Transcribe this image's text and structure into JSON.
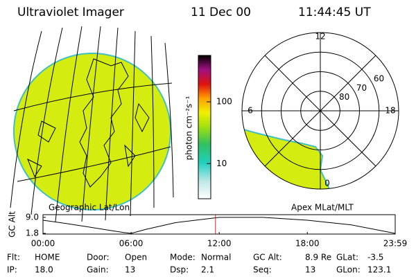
{
  "header": {
    "title": "Ultraviolet Imager",
    "date": "11 Dec 00",
    "time": "11:44:45 UT"
  },
  "geo_panel": {
    "label": "Geographic Lat/Lon"
  },
  "colorbar": {
    "label": "photon cm⁻²s⁻¹",
    "log_scale": true,
    "lim": [
      2.7,
      565
    ],
    "ticks": [
      10,
      100
    ]
  },
  "polar_panel": {
    "label": "Apex MLat/MLT",
    "rlim": [
      90,
      50
    ],
    "rticks": [
      80,
      70,
      60
    ],
    "thetaticks": [
      0,
      6,
      12,
      18
    ]
  },
  "chart_data": {
    "type": "line",
    "ylabel": "GC Alt",
    "x": [
      0,
      1.5,
      3,
      4.5,
      5.5,
      6,
      7,
      9,
      12,
      15,
      18,
      21,
      23.983
    ],
    "series": [
      {
        "name": "GC Alt",
        "color": "#000000",
        "values": [
          7.7,
          6.3,
          4.8,
          3.2,
          2.2,
          1.8,
          3.6,
          6.6,
          9.0,
          9.0,
          7.7,
          5.6,
          1.8
        ]
      }
    ],
    "xlim": [
      0,
      23.983
    ],
    "xticks": [
      {
        "value": 0,
        "label": "00:00"
      },
      {
        "value": 6,
        "label": "06:00"
      },
      {
        "value": 12,
        "label": "12:00"
      },
      {
        "value": 18,
        "label": "18:00"
      },
      {
        "value": 23.983,
        "label": "23:59"
      }
    ],
    "ylim": [
      1.5,
      10.2
    ],
    "yticks": [
      1.8,
      {
        "value": 9,
        "label": "9.0"
      }
    ],
    "current_time": 11.746,
    "marker_color": "#d02020"
  },
  "status": [
    [
      {
        "label": "Flt:",
        "value": "HOME"
      },
      {
        "label": "Door:",
        "value": "Open"
      },
      {
        "label": "Mode:",
        "value": "Normal"
      },
      {
        "label": "GC Alt:",
        "value": "8.9 Re"
      },
      {
        "label": "GLat:",
        "value": "-3.5"
      }
    ],
    [
      {
        "label": "IP:",
        "value": "18.0"
      },
      {
        "label": "Gain:",
        "value": "13"
      },
      {
        "label": "Dsp:",
        "value": "2.1"
      },
      {
        "label": "Seq:",
        "value": "13"
      },
      {
        "label": "GLon:",
        "value": "123.1"
      }
    ]
  ]
}
